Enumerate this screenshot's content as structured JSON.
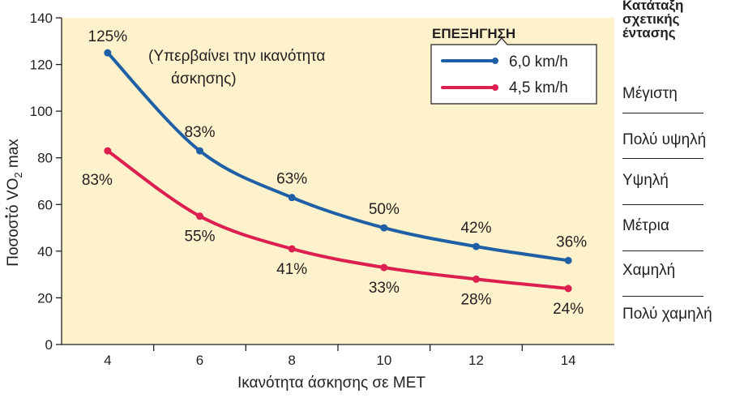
{
  "chart_data": {
    "type": "line",
    "x": [
      4,
      6,
      8,
      10,
      12,
      14
    ],
    "series": [
      {
        "name": "6,0 km/h",
        "color": "#1f5fa5",
        "values": [
          125,
          83,
          63,
          50,
          42,
          36
        ],
        "labels": [
          "125%",
          "83%",
          "63%",
          "50%",
          "42%",
          "36%"
        ]
      },
      {
        "name": "4,5 km/h",
        "color": "#dc1f50",
        "values": [
          83,
          55,
          41,
          33,
          28,
          24
        ],
        "labels": [
          "83%",
          "55%",
          "41%",
          "33%",
          "28%",
          "24%"
        ]
      }
    ],
    "xlabel": "Ικανότητα άσκησης σε MET",
    "ylabel_before": "Ποσοστό ",
    "ylabel_symbol": "V",
    "ylabel_mid": "O",
    "ylabel_sub": "2",
    "ylabel_after": " max",
    "xticks": [
      "4",
      "6",
      "8",
      "10",
      "12",
      "14"
    ],
    "yticks": [
      "0",
      "20",
      "40",
      "60",
      "80",
      "100",
      "120",
      "140"
    ],
    "xlim": [
      3,
      15
    ],
    "ylim": [
      0,
      140
    ],
    "annotation": [
      "(Υπερβαίνει την ικανότητα",
      "άσκησης)"
    ],
    "legend": {
      "title": "ΕΠΕΞΗΓΗΣΗ",
      "placement": "top-right"
    },
    "background_color": "#fdf2cc"
  },
  "intensity_panel": {
    "title": [
      "Κατάταξη",
      "σχετικής",
      "έντασης"
    ],
    "levels": [
      "Μέγιστη",
      "Πολύ υψηλή",
      "Υψηλή",
      "Μέτρια",
      "Χαμηλή",
      "Πολύ χαμηλή"
    ]
  }
}
